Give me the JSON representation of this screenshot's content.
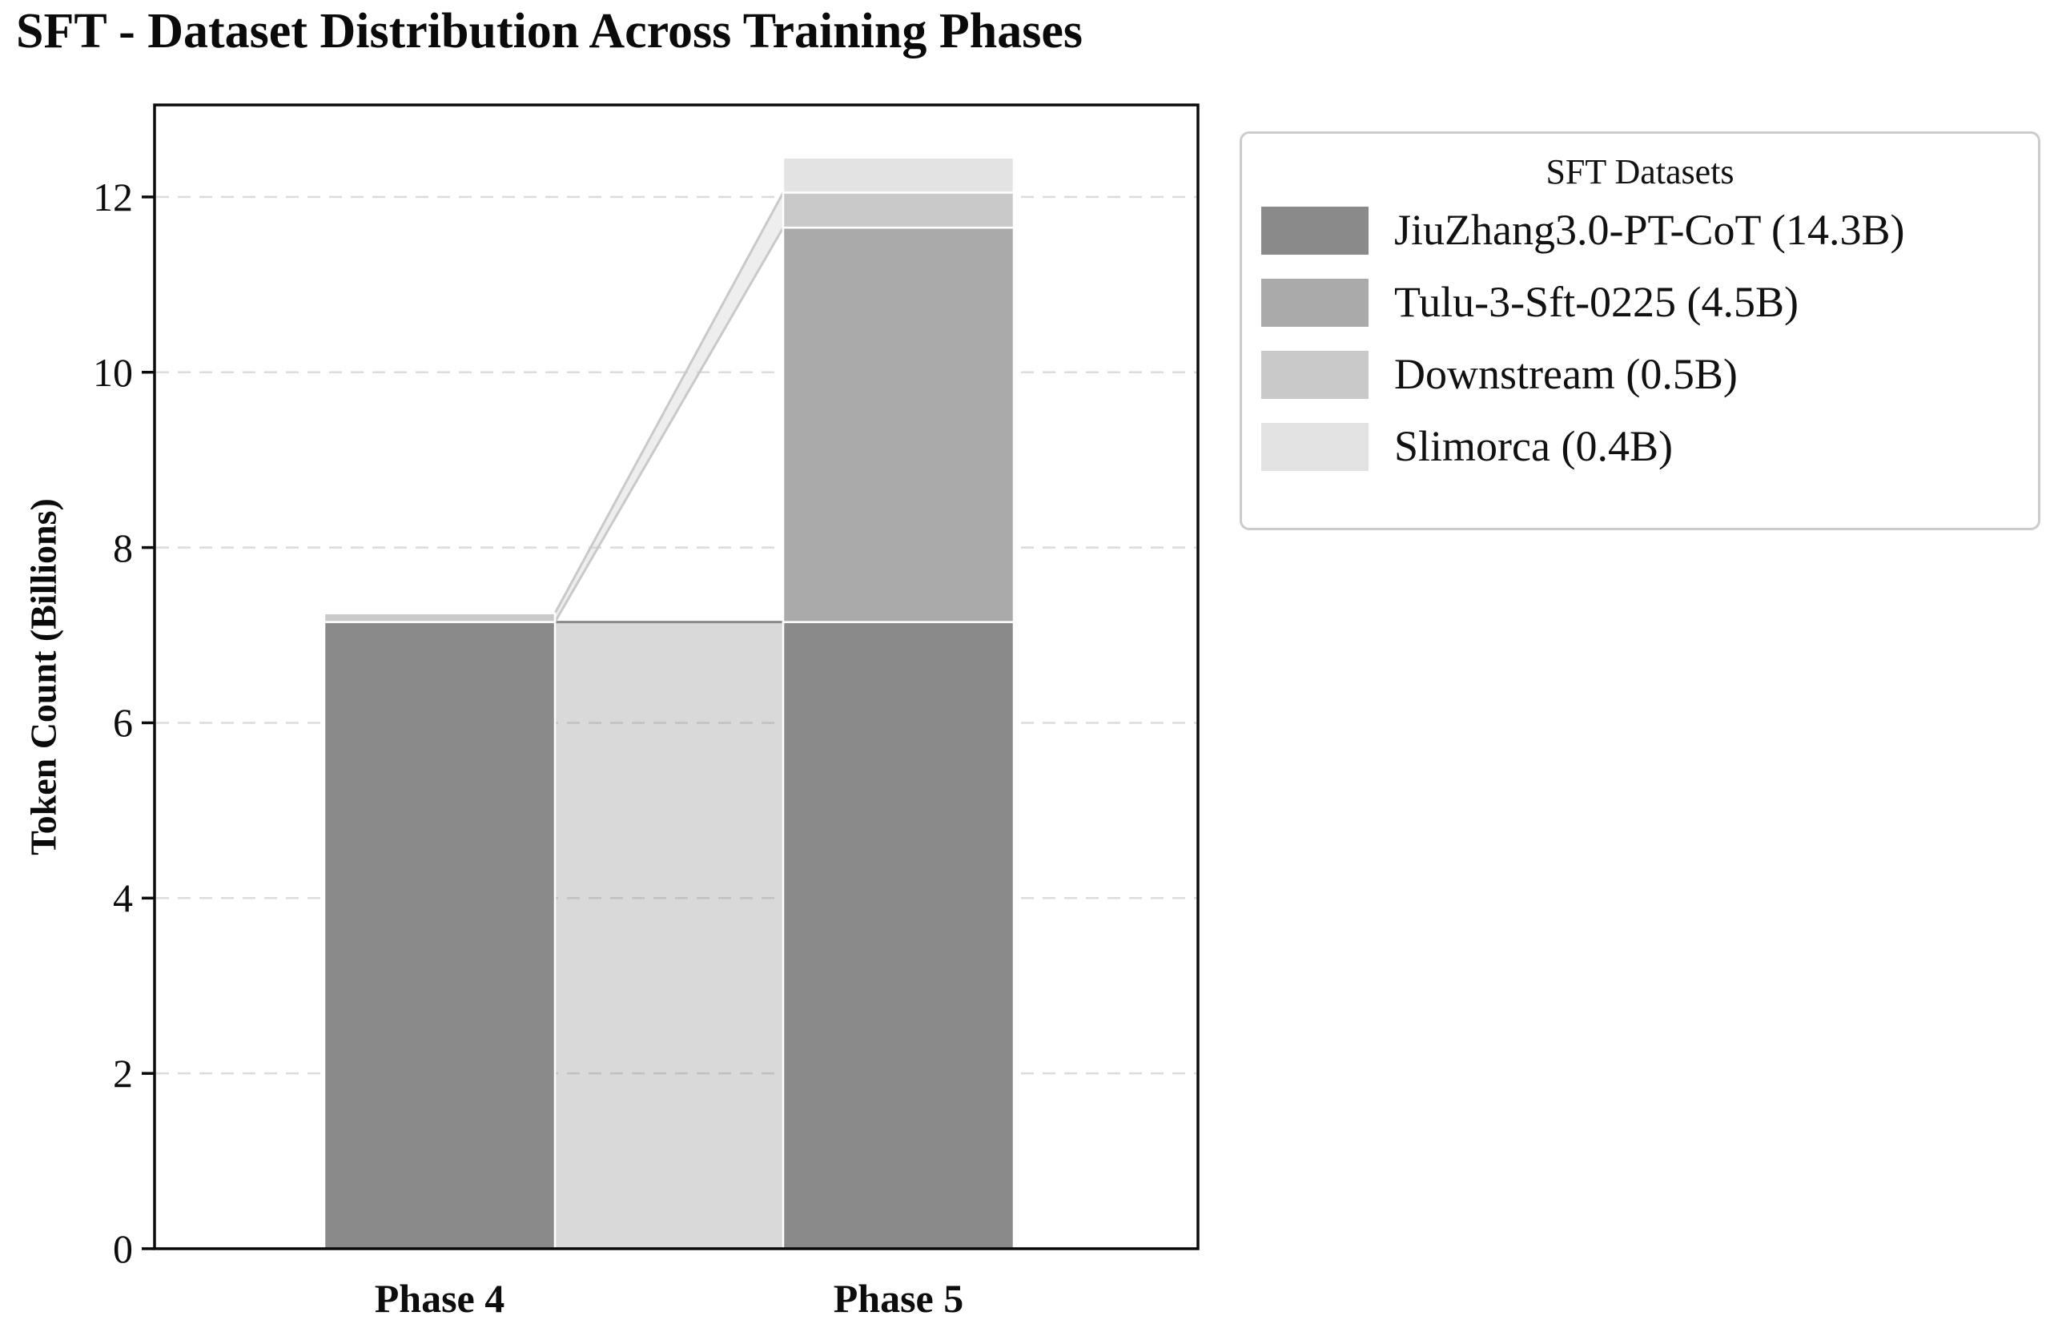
{
  "page": {
    "background": "#ffffff"
  },
  "title": "SFT - Dataset Distribution Across Training Phases",
  "chart_data": {
    "type": "bar",
    "stacked": true,
    "title": "SFT - Dataset Distribution Across Training Phases",
    "xlabel": "",
    "ylabel": "Token Count (Billions)",
    "categories": [
      "Phase 4",
      "Phase 5"
    ],
    "series": [
      {
        "name": "JiuZhang3.0-PT-CoT",
        "legend_label": "JiuZhang3.0-PT-CoT (14.3B)",
        "values": [
          7.15,
          7.15
        ],
        "color": "#8a8a8a"
      },
      {
        "name": "Tulu-3-Sft-0225",
        "legend_label": "Tulu-3-Sft-0225 (4.5B)",
        "values": [
          0,
          4.5
        ],
        "color": "#aaaaaa"
      },
      {
        "name": "Downstream",
        "legend_label": "Downstream (0.5B)",
        "values": [
          0.1,
          0.4
        ],
        "color": "#c9c9c9"
      },
      {
        "name": "Slimorca",
        "legend_label": "Slimorca (0.4B)",
        "values": [
          0,
          0.4
        ],
        "color": "#e3e3e3"
      }
    ],
    "yticks": [
      0,
      2,
      4,
      6,
      8,
      10,
      12
    ],
    "ylim": [
      0,
      13.05
    ],
    "grid": true,
    "grid_style": "dashed",
    "connectors": true,
    "legend": {
      "title": "SFT Datasets",
      "position": "outside-upper-right"
    },
    "colors": {
      "grid": "#dcdcdc",
      "axis": "#0a0a0a",
      "bar_edge": "#ffffff",
      "legend_border": "#cccccc",
      "text": "#0d0d0d",
      "background": "#ffffff"
    }
  }
}
